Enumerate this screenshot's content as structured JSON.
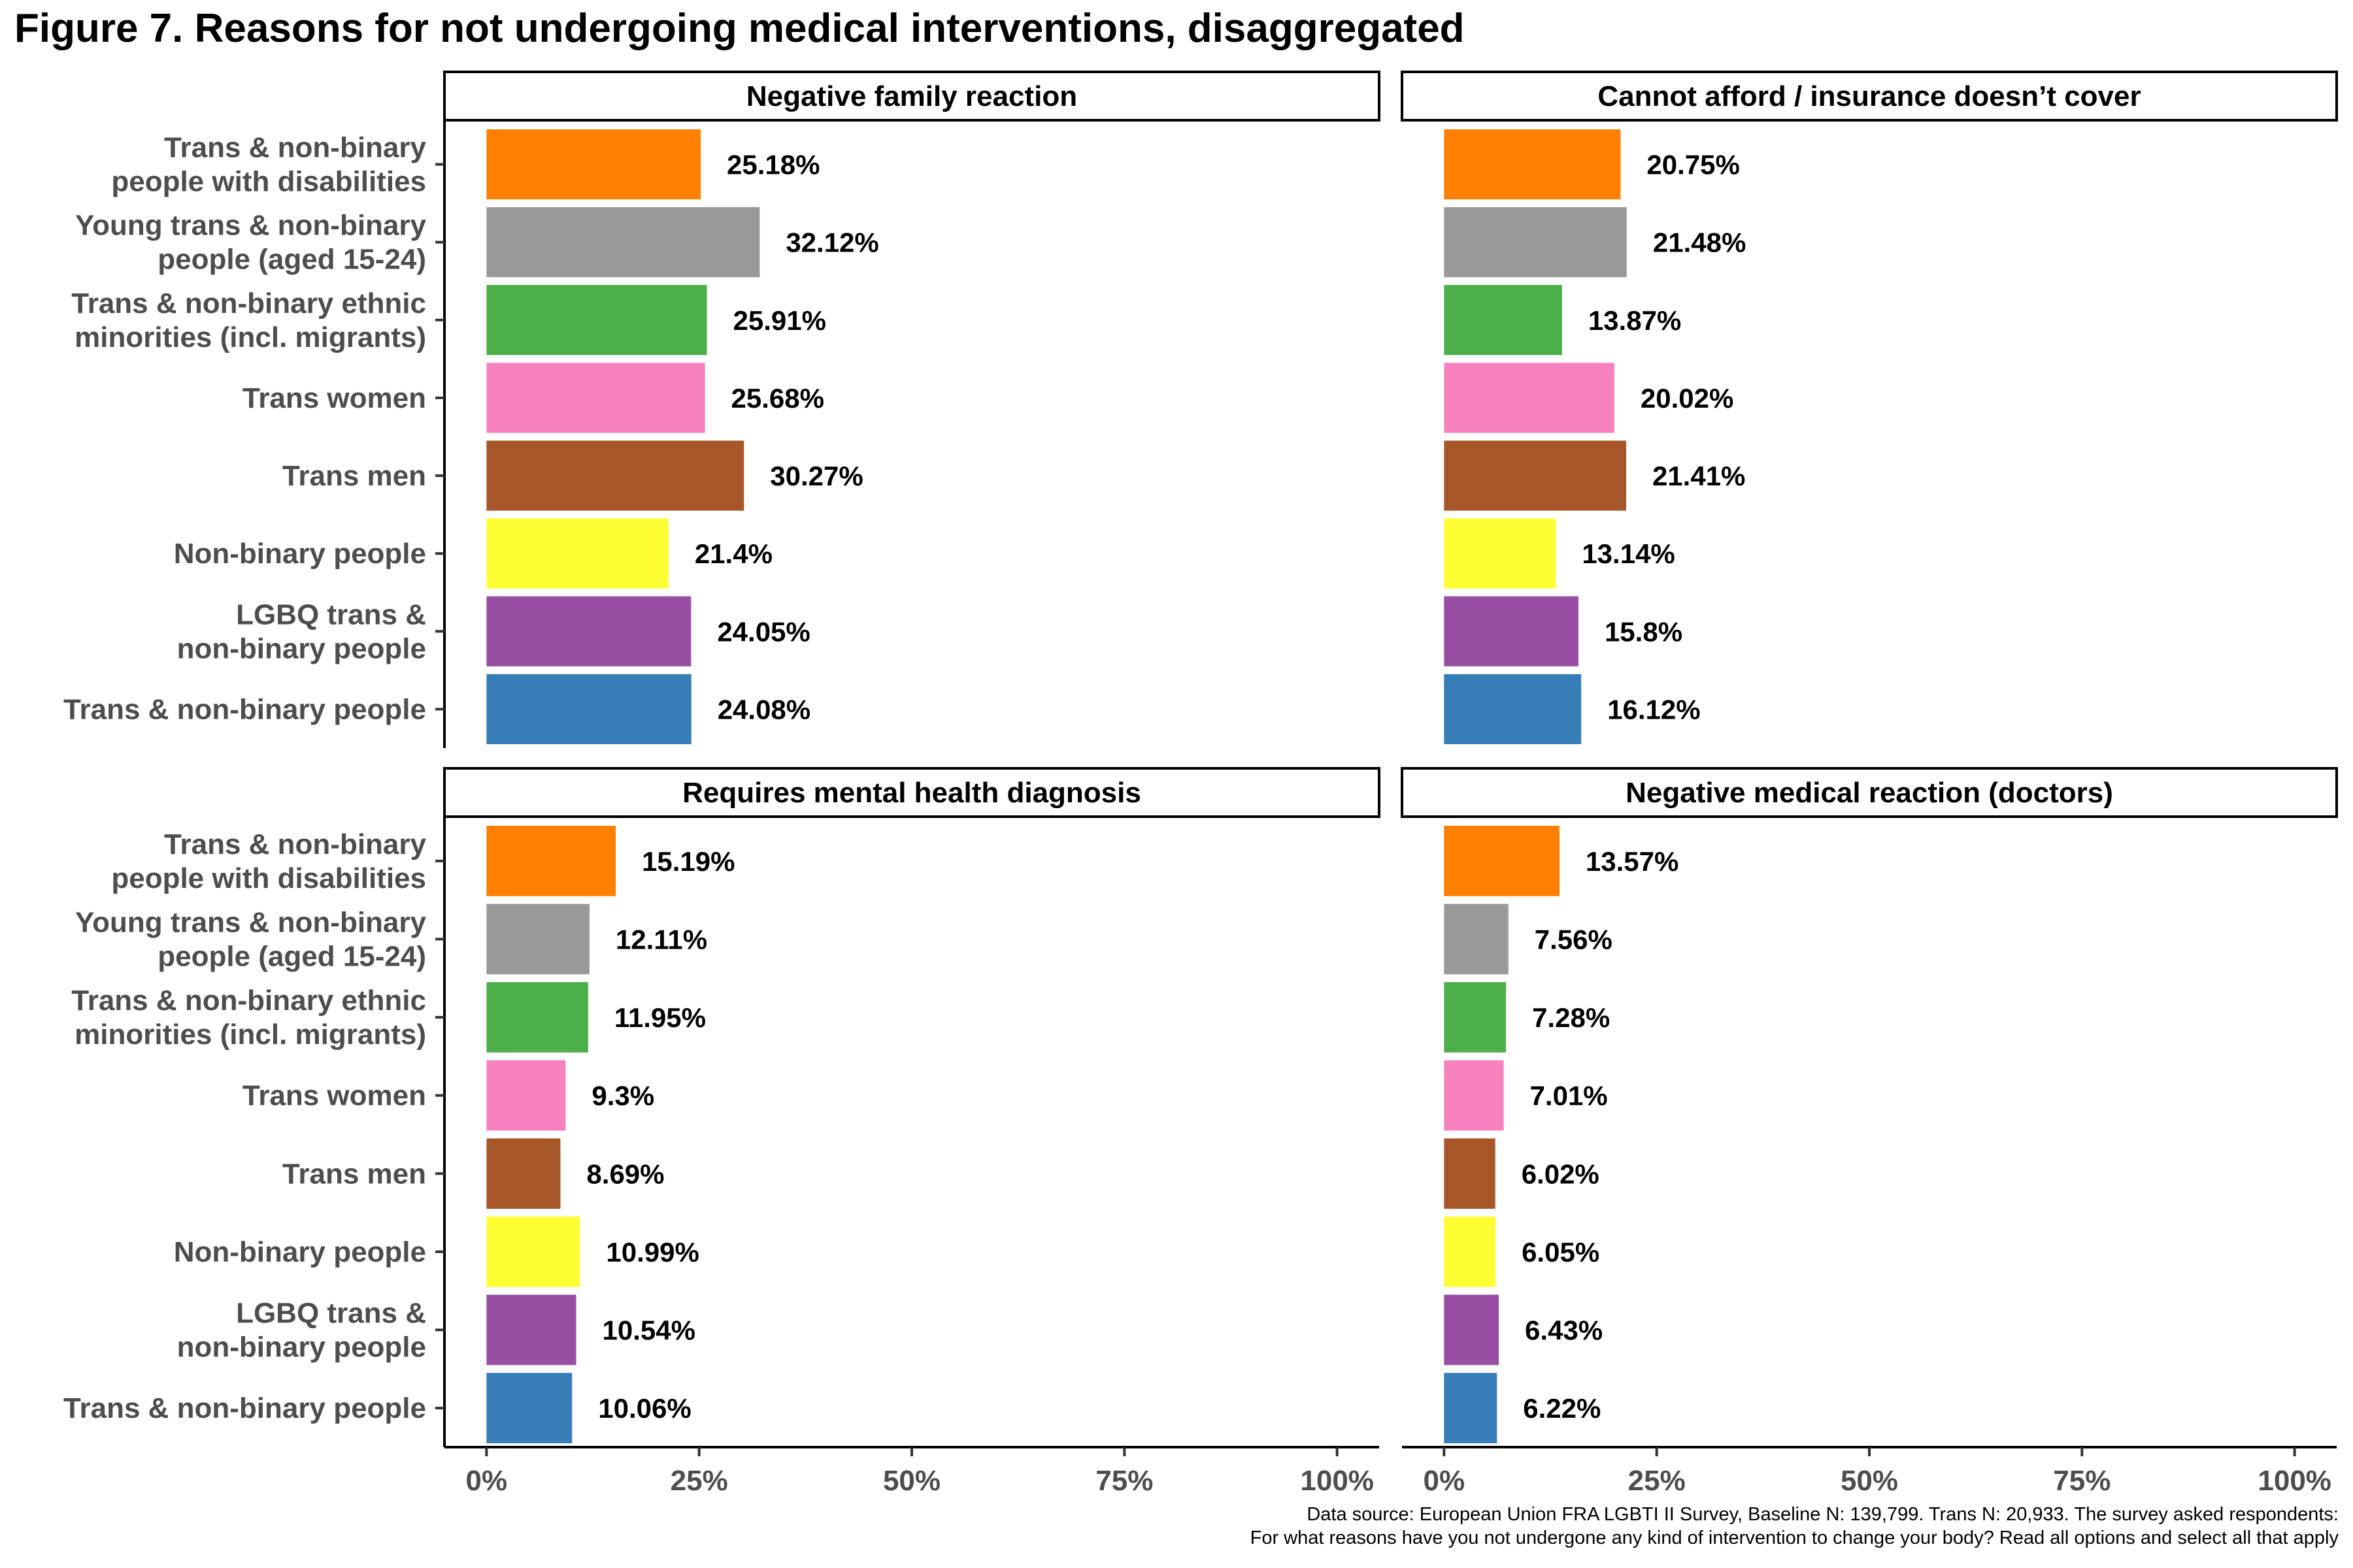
{
  "title": "Figure 7. Reasons for not undergoing medical interventions, disaggregated",
  "source": {
    "line1": "Data source: European Union FRA LGBTI II Survey, Baseline N: 139,799. Trans N: 20,933. The survey asked respondents:",
    "line2": "For what reasons have you not undergone any kind of intervention to change your body? Read all options and select all that apply"
  },
  "chart_data": {
    "type": "bar",
    "orientation": "horizontal",
    "categories": [
      "Trans & non-binary\npeople with disabilities",
      "Young trans & non-binary\npeople (aged 15-24)",
      "Trans & non-binary ethnic\nminorities (incl. migrants)",
      "Trans women",
      "Trans men",
      "Non-binary people",
      "LGBQ trans &\nnon-binary people",
      "Trans & non-binary people"
    ],
    "colors": [
      "#ff7f00",
      "#999999",
      "#4daf4a",
      "#f781bf",
      "#a65628",
      "#ffff33",
      "#984ea3",
      "#377eb8"
    ],
    "x_ticks": [
      "0%",
      "25%",
      "50%",
      "75%",
      "100%"
    ],
    "xlim": [
      0,
      100
    ],
    "grid": false,
    "panels": [
      {
        "title": "Negative family reaction",
        "values": [
          25.18,
          32.12,
          25.91,
          25.68,
          30.27,
          21.4,
          24.05,
          24.08
        ],
        "labels": [
          "25.18%",
          "32.12%",
          "25.91%",
          "25.68%",
          "30.27%",
          "21.4%",
          "24.05%",
          "24.08%"
        ]
      },
      {
        "title": "Cannot afford / insurance doesn’t cover",
        "values": [
          20.75,
          21.48,
          13.87,
          20.02,
          21.41,
          13.14,
          15.8,
          16.12
        ],
        "labels": [
          "20.75%",
          "21.48%",
          "13.87%",
          "20.02%",
          "21.41%",
          "13.14%",
          "15.8%",
          "16.12%"
        ]
      },
      {
        "title": "Requires mental health diagnosis",
        "values": [
          15.19,
          12.11,
          11.95,
          9.3,
          8.69,
          10.99,
          10.54,
          10.06
        ],
        "labels": [
          "15.19%",
          "12.11%",
          "11.95%",
          "9.3%",
          "8.69%",
          "10.99%",
          "10.54%",
          "10.06%"
        ]
      },
      {
        "title": "Negative medical reaction (doctors)",
        "values": [
          13.57,
          7.56,
          7.28,
          7.01,
          6.02,
          6.05,
          6.43,
          6.22
        ],
        "labels": [
          "13.57%",
          "7.56%",
          "7.28%",
          "7.01%",
          "6.02%",
          "6.05%",
          "6.43%",
          "6.22%"
        ]
      }
    ]
  }
}
